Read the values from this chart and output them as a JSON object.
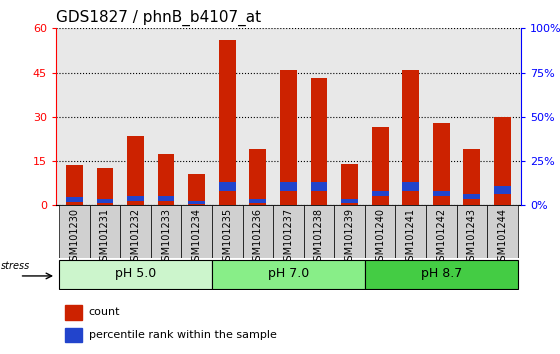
{
  "title": "GDS1827 / phnB_b4107_at",
  "samples": [
    "GSM101230",
    "GSM101231",
    "GSM101232",
    "GSM101233",
    "GSM101234",
    "GSM101235",
    "GSM101236",
    "GSM101237",
    "GSM101238",
    "GSM101239",
    "GSM101240",
    "GSM101241",
    "GSM101242",
    "GSM101243",
    "GSM101244"
  ],
  "count_values": [
    13.5,
    12.5,
    23.5,
    17.5,
    10.5,
    56.0,
    19.0,
    46.0,
    43.0,
    14.0,
    26.5,
    46.0,
    28.0,
    19.0,
    30.0
  ],
  "blue_heights": [
    1.5,
    1.2,
    1.5,
    1.5,
    1.2,
    3.0,
    1.2,
    3.0,
    3.0,
    1.2,
    2.0,
    3.0,
    2.0,
    1.8,
    2.5
  ],
  "blue_bottoms": [
    1.2,
    0.8,
    1.5,
    1.5,
    0.3,
    5.0,
    0.8,
    5.0,
    5.0,
    0.8,
    3.0,
    5.0,
    3.0,
    2.0,
    4.0
  ],
  "groups": [
    {
      "label": "pH 5.0",
      "start": 0,
      "end": 5,
      "color": "#ccf5cc"
    },
    {
      "label": "pH 7.0",
      "start": 5,
      "end": 10,
      "color": "#88ee88"
    },
    {
      "label": "pH 8.7",
      "start": 10,
      "end": 15,
      "color": "#44cc44"
    }
  ],
  "ylim_left": [
    0,
    60
  ],
  "ylim_right": [
    0,
    100
  ],
  "yticks_left": [
    0,
    15,
    30,
    45,
    60
  ],
  "yticks_right": [
    0,
    25,
    50,
    75,
    100
  ],
  "ytick_labels_right": [
    "0%",
    "25%",
    "50%",
    "75%",
    "100%"
  ],
  "bar_color": "#cc2200",
  "blue_color": "#2244cc",
  "bg_color": "#e8e8e8",
  "xtick_bg": "#d0d0d0",
  "title_fontsize": 11,
  "stress_label": "stress",
  "legend_count": "count",
  "legend_percentile": "percentile rank within the sample",
  "bar_width": 0.55
}
